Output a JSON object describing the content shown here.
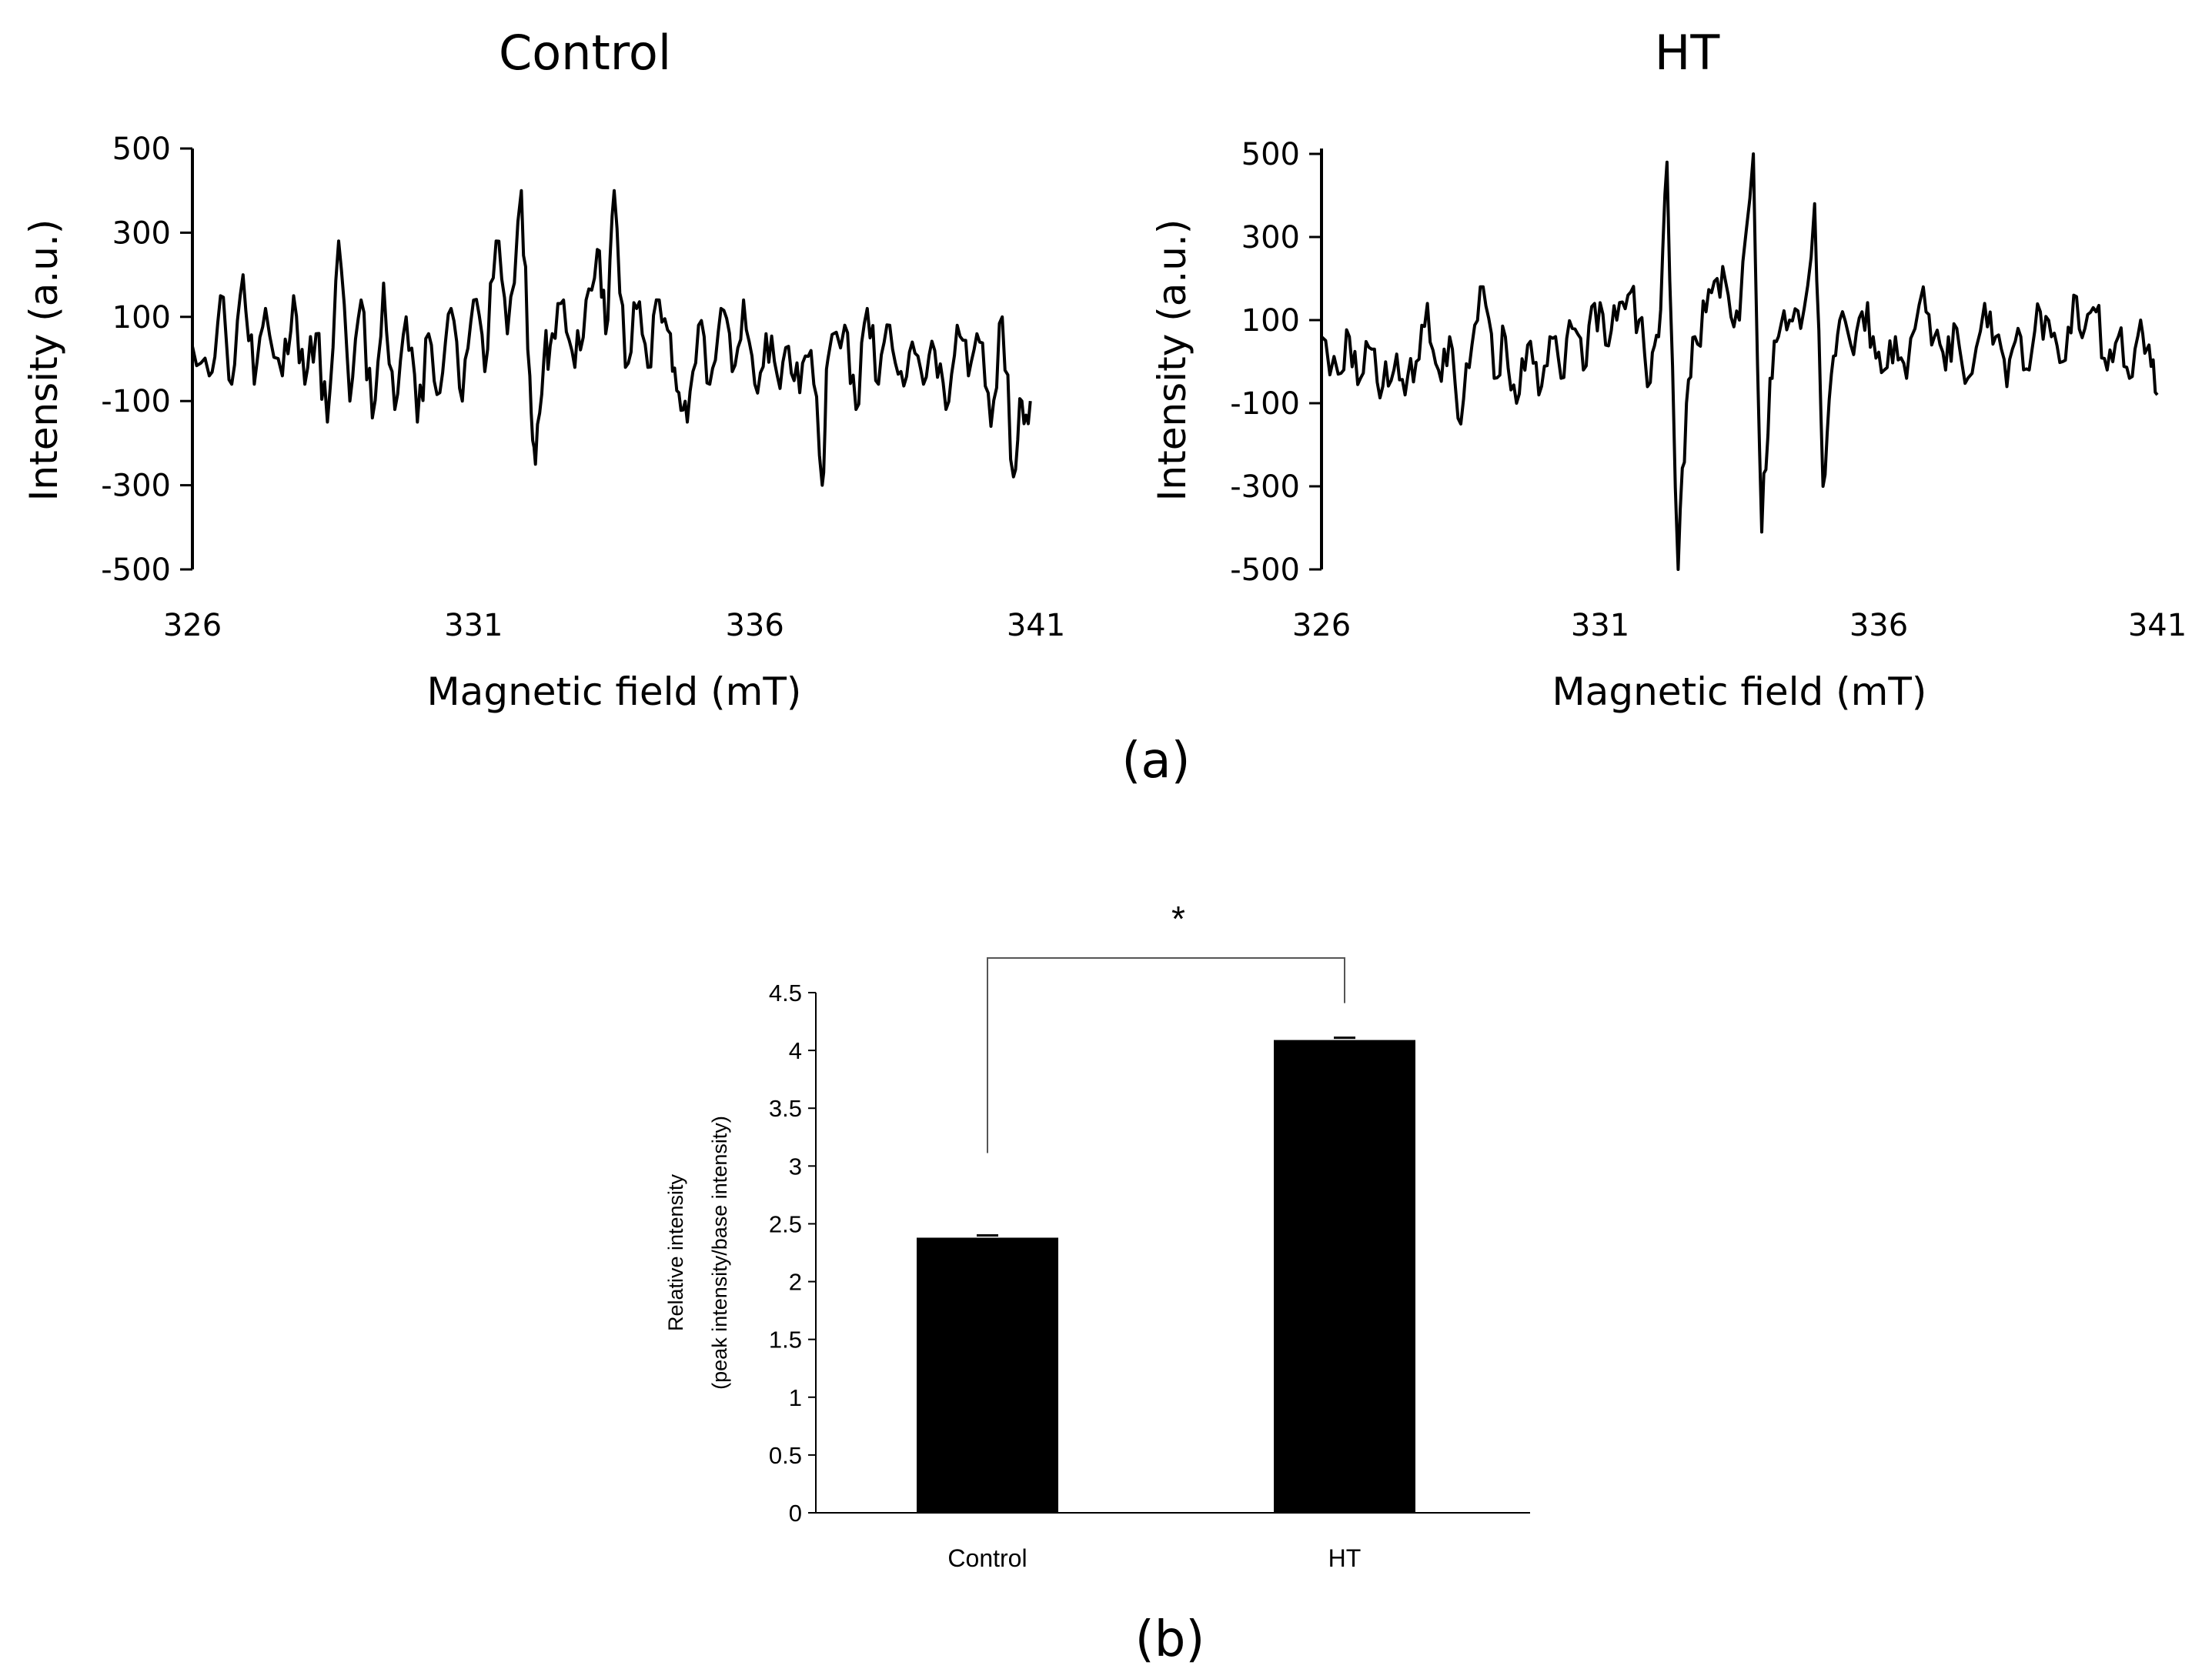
{
  "chart_data": [
    {
      "type": "line",
      "panel": "a",
      "title": "Control",
      "xlabel": "Magnetic field (mT)",
      "ylabel": "Intensity (a.u.)",
      "xlim": [
        326,
        341
      ],
      "ylim": [
        -500,
        500
      ],
      "xticks": [
        "326",
        "331",
        "336",
        "341"
      ],
      "yticks": [
        "500",
        "300",
        "100",
        "-100",
        "-300",
        "-500"
      ],
      "series": [
        {
          "name": "Control",
          "x_start": 326,
          "x_end": 340.9,
          "keypoints": [
            [
              326.0,
              30
            ],
            [
              326.3,
              -40
            ],
            [
              326.5,
              150
            ],
            [
              326.7,
              -60
            ],
            [
              326.9,
              200
            ],
            [
              327.1,
              -60
            ],
            [
              327.3,
              120
            ],
            [
              327.6,
              -40
            ],
            [
              327.8,
              150
            ],
            [
              328.0,
              -60
            ],
            [
              328.2,
              60
            ],
            [
              328.4,
              -150
            ],
            [
              328.6,
              280
            ],
            [
              328.8,
              -100
            ],
            [
              329.0,
              140
            ],
            [
              329.2,
              -140
            ],
            [
              329.4,
              180
            ],
            [
              329.6,
              -120
            ],
            [
              329.8,
              100
            ],
            [
              330.0,
              -150
            ],
            [
              330.2,
              60
            ],
            [
              330.4,
              -80
            ],
            [
              330.6,
              120
            ],
            [
              330.8,
              -100
            ],
            [
              331.0,
              140
            ],
            [
              331.2,
              -30
            ],
            [
              331.4,
              280
            ],
            [
              331.6,
              60
            ],
            [
              331.85,
              400
            ],
            [
              332.0,
              -40
            ],
            [
              332.1,
              -250
            ],
            [
              332.25,
              0
            ],
            [
              332.4,
              60
            ],
            [
              332.6,
              140
            ],
            [
              332.8,
              -20
            ],
            [
              333.0,
              140
            ],
            [
              333.2,
              260
            ],
            [
              333.35,
              60
            ],
            [
              333.5,
              400
            ],
            [
              333.7,
              -20
            ],
            [
              333.9,
              120
            ],
            [
              334.1,
              -20
            ],
            [
              334.3,
              140
            ],
            [
              334.5,
              60
            ],
            [
              334.65,
              -80
            ],
            [
              334.8,
              -150
            ],
            [
              335.0,
              80
            ],
            [
              335.2,
              -60
            ],
            [
              335.4,
              120
            ],
            [
              335.6,
              -30
            ],
            [
              335.8,
              140
            ],
            [
              336.0,
              -60
            ],
            [
              336.2,
              60
            ],
            [
              336.4,
              -40
            ],
            [
              336.6,
              30
            ],
            [
              336.8,
              -80
            ],
            [
              337.0,
              20
            ],
            [
              337.2,
              -300
            ],
            [
              337.3,
              0
            ],
            [
              337.6,
              80
            ],
            [
              337.8,
              -120
            ],
            [
              338.0,
              120
            ],
            [
              338.2,
              -60
            ],
            [
              338.4,
              80
            ],
            [
              338.6,
              -30
            ],
            [
              338.8,
              40
            ],
            [
              339.0,
              -60
            ],
            [
              339.2,
              20
            ],
            [
              339.4,
              -120
            ],
            [
              339.6,
              80
            ],
            [
              339.8,
              -40
            ],
            [
              340.0,
              40
            ],
            [
              340.2,
              -160
            ],
            [
              340.4,
              100
            ],
            [
              340.6,
              -280
            ],
            [
              340.75,
              -100
            ],
            [
              340.9,
              -100
            ]
          ]
        }
      ]
    },
    {
      "type": "line",
      "panel": "a",
      "title": "HT",
      "xlabel": "Magnetic field (mT)",
      "ylabel": "Intensity (a.u.)",
      "xlim": [
        326,
        341
      ],
      "ylim": [
        -500,
        500
      ],
      "xticks": [
        "326",
        "331",
        "336",
        "341"
      ],
      "yticks": [
        "500",
        "300",
        "100",
        "-100",
        "-300",
        "-500"
      ],
      "series": [
        {
          "name": "HT",
          "x_start": 326,
          "x_end": 341,
          "keypoints": [
            [
              326.0,
              60
            ],
            [
              326.3,
              -30
            ],
            [
              326.5,
              60
            ],
            [
              326.7,
              -40
            ],
            [
              326.9,
              30
            ],
            [
              327.1,
              -60
            ],
            [
              327.3,
              -20
            ],
            [
              327.5,
              -80
            ],
            [
              327.7,
              0
            ],
            [
              327.9,
              140
            ],
            [
              328.1,
              -20
            ],
            [
              328.3,
              60
            ],
            [
              328.5,
              -150
            ],
            [
              328.7,
              40
            ],
            [
              328.9,
              180
            ],
            [
              329.1,
              -40
            ],
            [
              329.3,
              60
            ],
            [
              329.5,
              -100
            ],
            [
              329.7,
              40
            ],
            [
              329.9,
              -80
            ],
            [
              330.1,
              60
            ],
            [
              330.3,
              -40
            ],
            [
              330.5,
              80
            ],
            [
              330.7,
              -20
            ],
            [
              330.9,
              140
            ],
            [
              331.1,
              40
            ],
            [
              331.3,
              100
            ],
            [
              331.5,
              160
            ],
            [
              331.7,
              100
            ],
            [
              331.9,
              -50
            ],
            [
              332.05,
              60
            ],
            [
              332.2,
              480
            ],
            [
              332.4,
              -500
            ],
            [
              332.55,
              -100
            ],
            [
              332.7,
              60
            ],
            [
              332.9,
              120
            ],
            [
              333.1,
              200
            ],
            [
              333.3,
              160
            ],
            [
              333.5,
              100
            ],
            [
              333.75,
              500
            ],
            [
              333.9,
              -410
            ],
            [
              334.05,
              -40
            ],
            [
              334.2,
              60
            ],
            [
              334.4,
              100
            ],
            [
              334.6,
              80
            ],
            [
              334.85,
              380
            ],
            [
              335.0,
              -300
            ],
            [
              335.15,
              -30
            ],
            [
              335.3,
              100
            ],
            [
              335.5,
              40
            ],
            [
              335.7,
              120
            ],
            [
              335.9,
              60
            ],
            [
              336.1,
              -20
            ],
            [
              336.3,
              60
            ],
            [
              336.5,
              -40
            ],
            [
              336.8,
              180
            ],
            [
              337.0,
              60
            ],
            [
              337.2,
              -20
            ],
            [
              337.4,
              80
            ],
            [
              337.6,
              -40
            ],
            [
              337.9,
              140
            ],
            [
              338.1,
              60
            ],
            [
              338.3,
              -60
            ],
            [
              338.5,
              80
            ],
            [
              338.7,
              -20
            ],
            [
              338.9,
              120
            ],
            [
              339.1,
              60
            ],
            [
              339.3,
              0
            ],
            [
              339.5,
              160
            ],
            [
              339.7,
              80
            ],
            [
              339.9,
              120
            ],
            [
              340.1,
              -20
            ],
            [
              340.3,
              60
            ],
            [
              340.5,
              -40
            ],
            [
              340.7,
              100
            ],
            [
              340.85,
              40
            ],
            [
              341.0,
              -80
            ]
          ]
        }
      ]
    },
    {
      "type": "bar",
      "panel": "b",
      "ylabel": "Relative intensity (peak intensity/base intensity)",
      "ylabel_line1": "Relative intensity",
      "ylabel_line2": "(peak intensity/base intensity)",
      "categories": [
        "Control",
        "HT"
      ],
      "values": [
        2.38,
        4.09
      ],
      "errors": [
        0.02,
        0.02
      ],
      "ylim": [
        0,
        4.5
      ],
      "yticks": [
        "0",
        "0.5",
        "1",
        "1.5",
        "2",
        "2.5",
        "3",
        "3.5",
        "4",
        "4.5"
      ],
      "significance": "*"
    }
  ],
  "panel_labels": {
    "a": "(a)",
    "b": "(b)"
  },
  "colors": {
    "line": "#000000",
    "bar": "#000000",
    "axis": "#000000",
    "bracket": "#555555"
  }
}
